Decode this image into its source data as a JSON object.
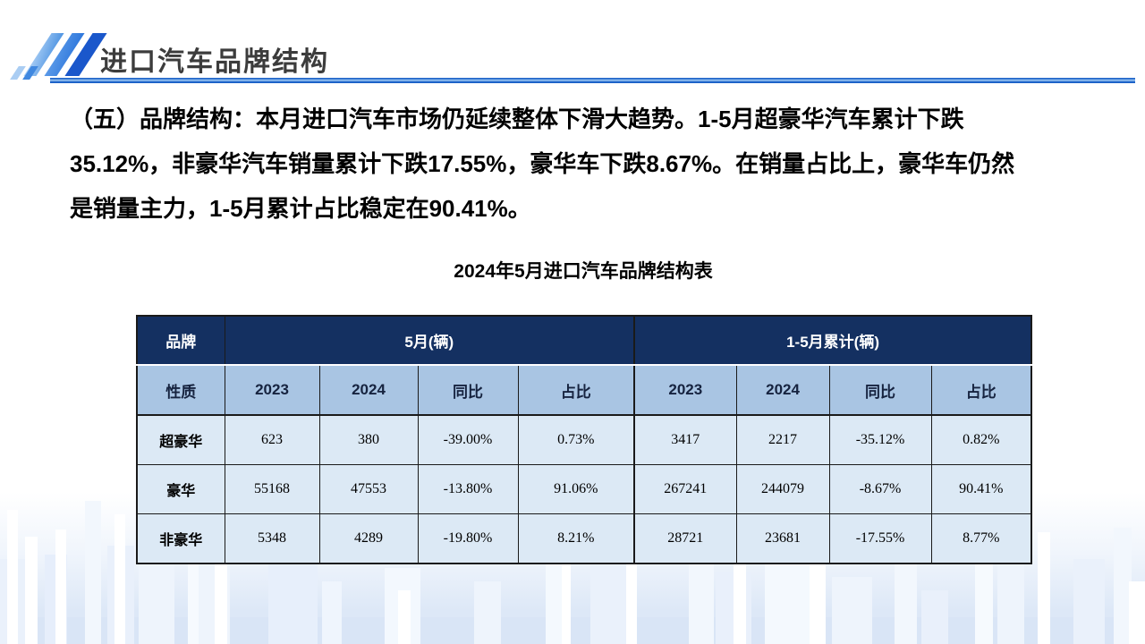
{
  "header": {
    "title": "进口汽车品牌结构"
  },
  "intro": {
    "lines": [
      "（五）品牌结构：本月进口汽车市场仍延续整体下滑大趋势。1-5月超豪华汽车累计下跌",
      "35.12%，非豪华汽车销量累计下跌17.55%，豪华车下跌8.67%。在销量占比上，豪华车仍然",
      "是销量主力，1-5月累计占比稳定在90.41%。"
    ]
  },
  "table": {
    "title": "2024年5月进口汽车品牌结构表",
    "corner_top": "品牌",
    "corner_bottom": "性质",
    "groups": [
      {
        "label": "5月(辆)"
      },
      {
        "label": "1-5月累计(辆)"
      }
    ],
    "columns": [
      "2023",
      "2024",
      "同比",
      "占比",
      "2023",
      "2024",
      "同比",
      "占比"
    ],
    "rows": [
      {
        "label": "超豪华",
        "values": [
          "623",
          "380",
          "-39.00%",
          "0.73%",
          "3417",
          "2217",
          "-35.12%",
          "0.82%"
        ]
      },
      {
        "label": "豪华",
        "values": [
          "55168",
          "47553",
          "-13.80%",
          "91.06%",
          "267241",
          "244079",
          "-8.67%",
          "90.41%"
        ]
      },
      {
        "label": "非豪华",
        "values": [
          "5348",
          "4289",
          "-19.80%",
          "8.21%",
          "28721",
          "23681",
          "-17.55%",
          "8.77%"
        ]
      }
    ]
  },
  "colors": {
    "header_navy": "#143061",
    "subheader_blue": "#a9c5e3",
    "row_blue": "#dce9f5",
    "accent_blue": "#1e63c8",
    "title_gray": "#3c3c3c"
  }
}
